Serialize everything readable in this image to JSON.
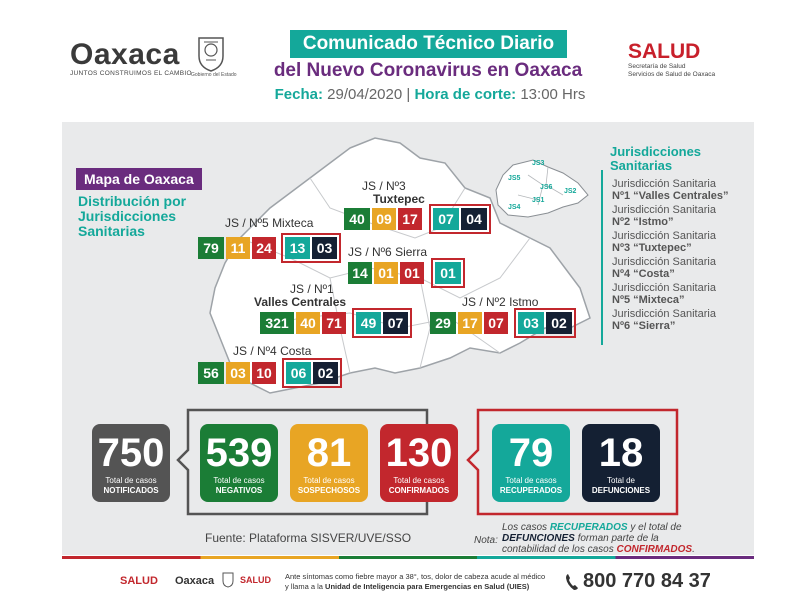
{
  "header": {
    "oaxaca_logo": "Oaxaca",
    "oaxaca_tagline": "JUNTOS CONSTRUIMOS EL CAMBIO",
    "gobierno_label": "Gobierno del Estado",
    "salud_logo": "SALUD",
    "salud_sub1": "Secretaría de Salud",
    "salud_sub2": "Servicios de Salud de Oaxaca",
    "title_line1": "Comunicado Técnico Diario",
    "title_line2": "del Nuevo Coronavirus en Oaxaca",
    "fecha_label": "Fecha:",
    "fecha_value": "29/04/2020",
    "separator": "|",
    "hora_label": "Hora de corte:",
    "hora_value": "13:00 Hrs"
  },
  "map": {
    "label": "Mapa de Oaxaca",
    "subtitle": "Distribución por Jurisdicciones Sanitarias",
    "inset_labels": [
      "JS3",
      "JS5",
      "JS6",
      "JS2",
      "JS4",
      "JS1"
    ]
  },
  "jurisdicciones": {
    "title_line1": "Jurisdicciones",
    "title_line2": "Sanitarias",
    "items": [
      {
        "line1": "Jurisdicción Sanitaria",
        "line2": "Nº1 “Valles Centrales”"
      },
      {
        "line1": "Jurisdicción Sanitaria",
        "line2": "Nº2 “Istmo”"
      },
      {
        "line1": "Jurisdicción Sanitaria",
        "line2": "Nº3 “Tuxtepec”"
      },
      {
        "line1": "Jurisdicción Sanitaria",
        "line2": "Nº4 “Costa”"
      },
      {
        "line1": "Jurisdicción Sanitaria",
        "line2": "Nº5 “Mixteca”"
      },
      {
        "line1": "Jurisdicción Sanitaria",
        "line2": "Nº6 “Sierra”"
      }
    ]
  },
  "regions": {
    "tuxtepec": {
      "label1": "JS / Nº3",
      "label2": "Tuxtepec",
      "values": [
        "40",
        "09",
        "17",
        "07",
        "04"
      ]
    },
    "mixteca": {
      "label": "JS / Nº5 Mixteca",
      "values": [
        "79",
        "11",
        "24",
        "13",
        "03"
      ]
    },
    "sierra": {
      "label": "JS / Nº6 Sierra",
      "values": [
        "14",
        "01",
        "01",
        "01"
      ]
    },
    "valles": {
      "label1": "JS / Nº1",
      "label2": "Valles Centrales",
      "values": [
        "321",
        "40",
        "71",
        "49",
        "07"
      ]
    },
    "istmo": {
      "label": "JS / Nº2 Istmo",
      "values": [
        "29",
        "17",
        "07",
        "03",
        "02"
      ]
    },
    "costa": {
      "label": "JS / Nº4 Costa",
      "values": [
        "56",
        "03",
        "10",
        "06",
        "02"
      ]
    }
  },
  "totals": {
    "notificados": {
      "value": "750",
      "line1": "Total de casos",
      "line2": "NOTIFICADOS"
    },
    "negativos": {
      "value": "539",
      "line1": "Total de casos",
      "line2": "NEGATIVOS"
    },
    "sospechosos": {
      "value": "81",
      "line1": "Total de casos",
      "line2": "SOSPECHOSOS"
    },
    "confirmados": {
      "value": "130",
      "line1": "Total de casos",
      "line2": "CONFIRMADOS"
    },
    "recuperados": {
      "value": "79",
      "line1": "Total de casos",
      "line2": "RECUPERADOS"
    },
    "defunciones": {
      "value": "18",
      "line1": "Total de",
      "line2": "DEFUNCIONES"
    }
  },
  "fuente": "Fuente: Plataforma SISVER/UVE/SSO",
  "nota": {
    "label": "Nota:",
    "p1": "Los casos ",
    "recuperados": "RECUPERADOS",
    "p2": " y el total de ",
    "defunciones": "DEFUNCIONES",
    "p3": " forman parte de la contabilidad de los casos ",
    "confirmados": "CONFIRMADOS",
    "p4": "."
  },
  "footer": {
    "salud": "SALUD",
    "oaxaca": "Oaxaca",
    "salud_small": "SALUD",
    "text1": "Ante síntomas como fiebre mayor a 38°, tos, dolor de cabeza acude al médico",
    "text2a": "y llama a la ",
    "text2b": "Unidad de Inteligencia para Emergencias en Salud (UIES)",
    "phone": "800 770 84 37"
  },
  "colors": {
    "teal": "#14a89a",
    "purple": "#6a2c7e",
    "green": "#1b7d36",
    "yellow": "#e8a524",
    "red": "#c2272d",
    "dark": "#142033",
    "gray": "#545454"
  }
}
